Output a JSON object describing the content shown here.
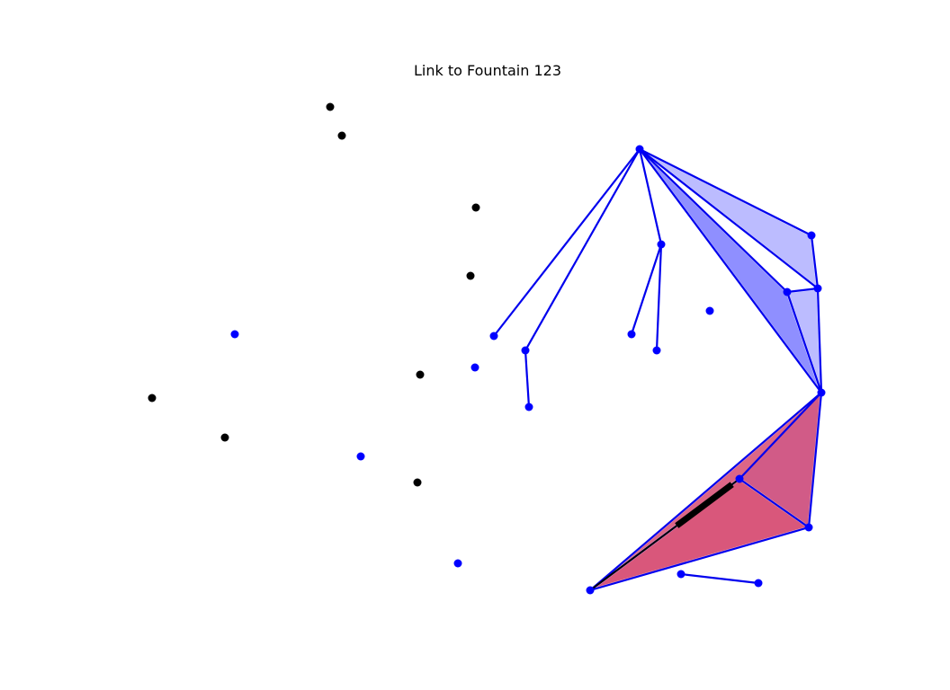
{
  "title": "Link to Fountain 123",
  "colors": {
    "background": "#ffffff",
    "edge": "#0000ee",
    "node_in_graph": "#0000ff",
    "node_isolated": "#000000",
    "fill_blue": "#7b7bff",
    "fill_light_blue": "#b0b0ff",
    "fill_red": "#d8557a",
    "highlight_edge": "#000000"
  },
  "nodes": [
    {
      "id": "n1",
      "group": "isolated"
    },
    {
      "id": "n2",
      "group": "isolated"
    },
    {
      "id": "n3",
      "group": "isolated"
    },
    {
      "id": "n4",
      "group": "isolated"
    },
    {
      "id": "n5",
      "group": "isolated"
    },
    {
      "id": "n6",
      "group": "isolated"
    },
    {
      "id": "n7",
      "group": "isolated"
    },
    {
      "id": "n8",
      "group": "isolated"
    },
    {
      "id": "b1",
      "group": "unlinked"
    },
    {
      "id": "b2",
      "group": "unlinked"
    },
    {
      "id": "b3",
      "group": "unlinked"
    },
    {
      "id": "b4",
      "group": "unlinked"
    },
    {
      "id": "b5",
      "group": "unlinked"
    },
    {
      "id": "hub",
      "group": "graph"
    },
    {
      "id": "p1",
      "group": "graph"
    },
    {
      "id": "p2",
      "group": "graph"
    },
    {
      "id": "p3",
      "group": "graph"
    },
    {
      "id": "p4",
      "group": "graph"
    },
    {
      "id": "p5",
      "group": "graph"
    },
    {
      "id": "p6",
      "group": "graph"
    },
    {
      "id": "p7",
      "group": "graph"
    },
    {
      "id": "r1",
      "group": "graph"
    },
    {
      "id": "r2",
      "group": "graph"
    },
    {
      "id": "r3",
      "group": "graph"
    },
    {
      "id": "r4",
      "group": "graph"
    },
    {
      "id": "r5",
      "group": "graph"
    },
    {
      "id": "r6",
      "group": "graph"
    },
    {
      "id": "r7",
      "group": "graph"
    },
    {
      "id": "s1",
      "group": "graph"
    },
    {
      "id": "s2",
      "group": "graph"
    }
  ],
  "edges": [
    [
      "hub",
      "p1"
    ],
    [
      "hub",
      "p2"
    ],
    [
      "p2",
      "p3"
    ],
    [
      "hub",
      "p4"
    ],
    [
      "p4",
      "p5"
    ],
    [
      "p4",
      "p6"
    ],
    [
      "hub",
      "r1"
    ],
    [
      "hub",
      "r2"
    ],
    [
      "hub",
      "r3"
    ],
    [
      "hub",
      "r4"
    ],
    [
      "r1",
      "r2"
    ],
    [
      "r3",
      "r2"
    ],
    [
      "r3",
      "r4"
    ],
    [
      "r2",
      "r4"
    ],
    [
      "r4",
      "r5"
    ],
    [
      "r4",
      "r6"
    ],
    [
      "r5",
      "r6"
    ],
    [
      "r4",
      "r7"
    ],
    [
      "r6",
      "r7"
    ],
    [
      "r5",
      "r7"
    ],
    [
      "s1",
      "s2"
    ]
  ],
  "faces": [
    {
      "nodes": [
        "hub",
        "r1",
        "r2"
      ],
      "fill": "light_blue"
    },
    {
      "nodes": [
        "hub",
        "r3",
        "r4"
      ],
      "fill": "blue"
    },
    {
      "nodes": [
        "r3",
        "r2",
        "r4"
      ],
      "fill": "light_blue"
    },
    {
      "nodes": [
        "r4",
        "r5",
        "r6"
      ],
      "fill": "blue"
    },
    {
      "nodes": [
        "r4",
        "r6",
        "r7"
      ],
      "fill": "red"
    },
    {
      "nodes": [
        "r5",
        "r6",
        "r7"
      ],
      "fill": "red"
    }
  ],
  "highlight_edges": [
    [
      "r5",
      "r7"
    ]
  ]
}
